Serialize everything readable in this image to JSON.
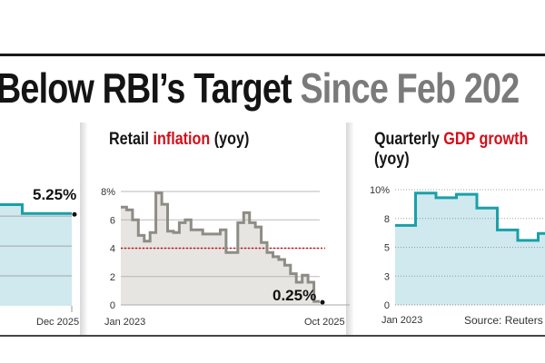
{
  "title": {
    "part1": "Below RBI’s Target",
    "part2": "Since Feb 202"
  },
  "colors": {
    "teal": "#1aa0a8",
    "teal_fill": "#cfe9ee",
    "grey_line": "#8d8d85",
    "grey_fill": "#e6e5e1",
    "target_red": "#d0101b"
  },
  "chart_data": [
    {
      "type": "line",
      "id": "left-partial",
      "title": "",
      "step": true,
      "xlabel_end": "Dec 2025",
      "values": [
        5.9,
        5.75,
        5.25,
        5.25
      ],
      "ylim": [
        0,
        6.5
      ],
      "gridlines": [
        1.7,
        3.4,
        5.1
      ],
      "callout": "5.25%"
    },
    {
      "type": "line",
      "id": "retail-inflation",
      "title_part1": "Retail ",
      "title_highlight": "inflation",
      "title_part2": " (yoy)",
      "step": true,
      "x_start": "Jan 2023",
      "x_end": "Oct 2025",
      "yticks": [
        "8%",
        "6",
        "4",
        "2",
        "0"
      ],
      "ytick_values": [
        8,
        6,
        4,
        2,
        0
      ],
      "ylim": [
        0,
        8
      ],
      "target": 4,
      "values": [
        6.9,
        6.7,
        6.0,
        4.9,
        4.5,
        5.1,
        7.9,
        7.1,
        5.2,
        5.1,
        5.8,
        6.0,
        5.3,
        5.3,
        5.0,
        5.0,
        5.0,
        5.3,
        3.7,
        3.7,
        5.8,
        6.5,
        5.8,
        5.5,
        4.4,
        3.7,
        3.4,
        3.2,
        2.8,
        2.2,
        1.6,
        2.1,
        1.6,
        0.25
      ],
      "callout": "0.25%"
    },
    {
      "type": "line",
      "id": "gdp-growth",
      "title_part1": "Quarterly ",
      "title_highlight": "GDP growth",
      "title_line2": "(yoy)",
      "step": true,
      "x_start": "Jan 2023",
      "yticks": [
        "10%",
        "8",
        "5",
        "3",
        "0"
      ],
      "ytick_values": [
        10,
        7.5,
        5,
        2.5,
        0
      ],
      "ylim": [
        0,
        10
      ],
      "values": [
        6.9,
        9.7,
        9.3,
        9.6,
        8.4,
        6.5,
        5.6,
        6.2,
        7.4,
        7.8
      ],
      "source": "Source: Reuters"
    }
  ]
}
